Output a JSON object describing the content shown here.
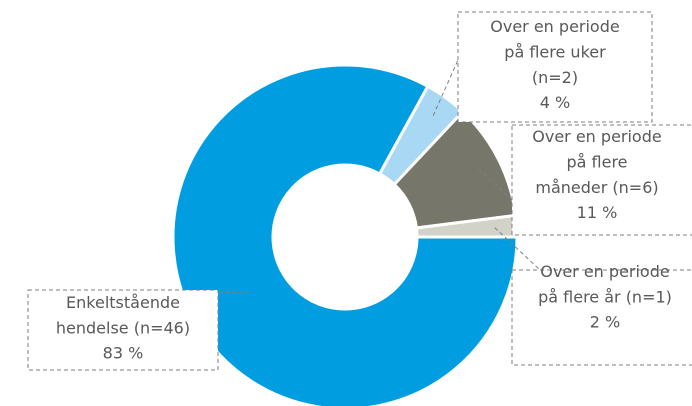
{
  "chart_data": {
    "type": "donut",
    "categories": [
      "Enkeltstående\nhendelse (n=46)",
      "Over en periode\npå flere uker\n(n=2)",
      "Over en periode\npå flere\nmåneder (n=6)",
      "Over en periode\npå flere år (n=1)"
    ],
    "values": [
      83,
      4,
      11,
      2
    ],
    "value_labels": [
      "83 %",
      "4 %",
      "11 %",
      "2 %"
    ],
    "colors": [
      "#009ee0",
      "#a9d8f4",
      "#76766a",
      "#d2d2c9"
    ]
  }
}
